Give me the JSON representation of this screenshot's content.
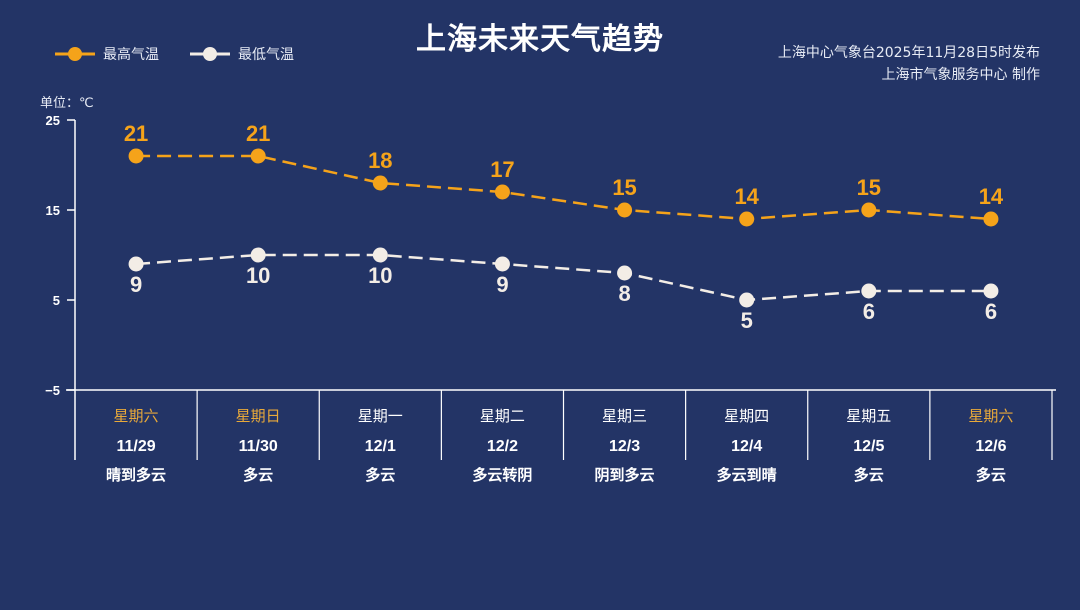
{
  "title": "上海未来天气趋势",
  "source_line1": "上海中心气象台2025年11月28日5时发布",
  "source_line2": "上海市气象服务中心 制作",
  "unit_label": "单位：℃",
  "colors": {
    "background": "#233466",
    "high": "#f5a31a",
    "low": "#f3ede6",
    "weekend_text": "#e8a93a"
  },
  "chart_data": {
    "type": "line",
    "title": "上海未来天气趋势",
    "ylabel": "单位：℃",
    "ylim": [
      -5,
      25
    ],
    "yticks": [
      25,
      15,
      5,
      -5
    ],
    "grid": false,
    "legend": "top-left",
    "categories": [
      "11/29",
      "11/30",
      "12/1",
      "12/2",
      "12/3",
      "12/4",
      "12/5",
      "12/6"
    ],
    "weekdays": [
      "星期六",
      "星期日",
      "星期一",
      "星期二",
      "星期三",
      "星期四",
      "星期五",
      "星期六"
    ],
    "weekend": [
      true,
      true,
      false,
      false,
      false,
      false,
      false,
      true
    ],
    "weather": [
      "晴到多云",
      "多云",
      "多云",
      "多云转阴",
      "阴到多云",
      "多云到晴",
      "多云",
      "多云"
    ],
    "series": [
      {
        "name": "最高气温",
        "values": [
          21,
          21,
          18,
          17,
          15,
          14,
          15,
          14
        ]
      },
      {
        "name": "最低气温",
        "values": [
          9,
          10,
          10,
          9,
          8,
          5,
          6,
          6
        ]
      }
    ]
  }
}
